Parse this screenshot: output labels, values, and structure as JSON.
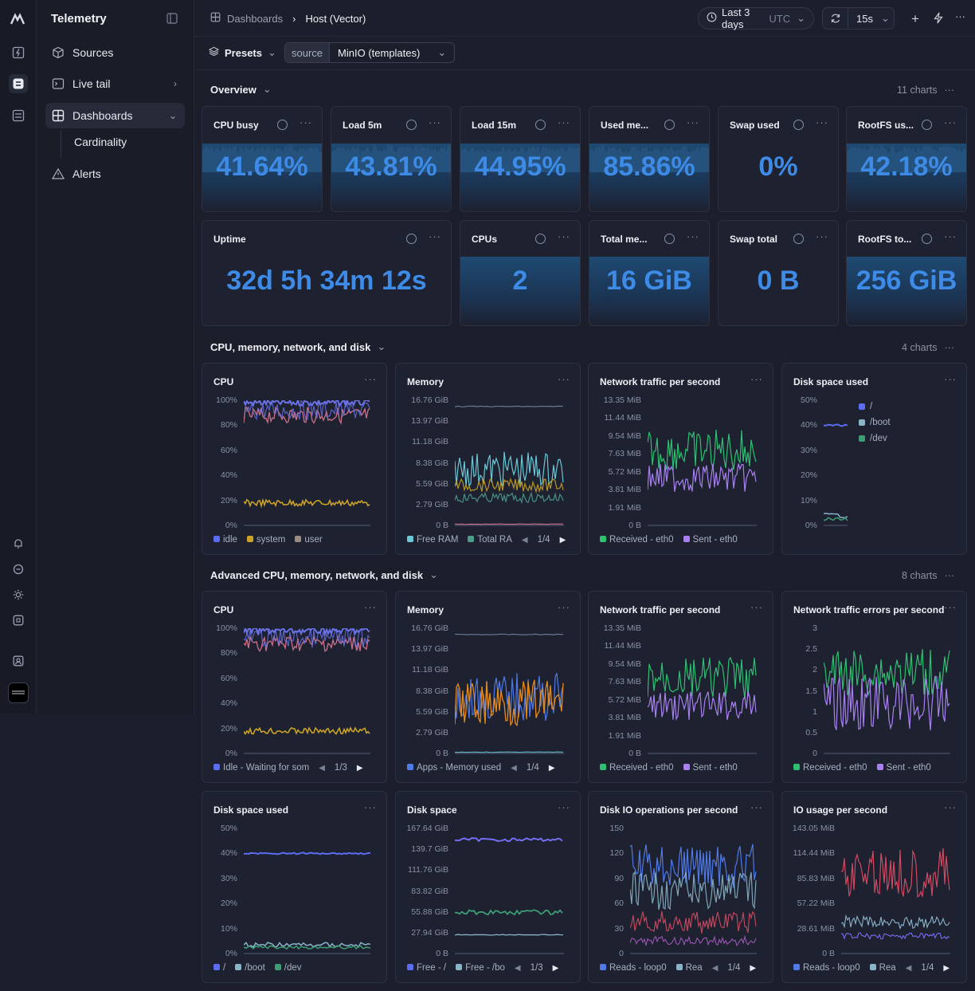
{
  "app": {
    "title": "Telemetry"
  },
  "nav": {
    "sources": "Sources",
    "live_tail": "Live tail",
    "dashboards": "Dashboards",
    "cardinality": "Cardinality",
    "alerts": "Alerts"
  },
  "breadcrumb": {
    "root": "Dashboards",
    "current": "Host (Vector)"
  },
  "toolbar": {
    "range": "Last 3 days",
    "tz": "UTC",
    "refresh": "15s"
  },
  "presets": {
    "label": "Presets",
    "source_key": "source",
    "source_value": "MinIO (templates)"
  },
  "sections": [
    {
      "title": "Overview",
      "count": "11 charts"
    },
    {
      "title": "CPU, memory, network, and disk",
      "count": "4 charts"
    },
    {
      "title": "Advanced CPU, memory, network, and disk",
      "count": "8 charts"
    }
  ],
  "overview": [
    {
      "title": "CPU busy",
      "value": "41.64%",
      "fill": 0.42
    },
    {
      "title": "Load 5m",
      "value": "43.81%",
      "fill": 0.44
    },
    {
      "title": "Load 15m",
      "value": "44.95%",
      "fill": 0.45
    },
    {
      "title": "Used me...",
      "value": "85.86%",
      "fill": 0.86
    },
    {
      "title": "Swap used",
      "value": "0%",
      "fill": 0
    },
    {
      "title": "RootFS us...",
      "value": "42.18%",
      "fill": 0.42
    },
    {
      "title": "Uptime",
      "value": "32d 5h 34m 12s",
      "fill": 0
    },
    {
      "title": "CPUs",
      "value": "2",
      "fill": 1
    },
    {
      "title": "Total me...",
      "value": "16 GiB",
      "fill": 1
    },
    {
      "title": "Swap total",
      "value": "0 B",
      "fill": 0
    },
    {
      "title": "RootFS to...",
      "value": "256 GiB",
      "fill": 1
    }
  ],
  "charts": [
    {
      "title": "CPU",
      "yticks": [
        "100%",
        "80%",
        "60%",
        "40%",
        "20%",
        "0%"
      ],
      "legend": [
        "idle",
        "system",
        "user"
      ],
      "colors": [
        "#5b6cf0",
        "#c9a227",
        "#9a8c86"
      ],
      "pager": ""
    },
    {
      "title": "Memory",
      "yticks": [
        "16.76 GiB",
        "13.97 GiB",
        "11.18 GiB",
        "8.38 GiB",
        "5.59 GiB",
        "2.79 GiB",
        "0 B"
      ],
      "legend": [
        "Free RAM",
        "Total RA"
      ],
      "colors": [
        "#6cc7d6",
        "#4e9c8a"
      ],
      "pager": "1/4"
    },
    {
      "title": "Network traffic per second",
      "yticks": [
        "13.35 MiB",
        "11.44 MiB",
        "9.54 MiB",
        "7.63 MiB",
        "5.72 MiB",
        "3.81 MiB",
        "1.91 MiB",
        "0 B"
      ],
      "legend": [
        "Received - eth0",
        "Sent - eth0"
      ],
      "colors": [
        "#2fbf71",
        "#a880f0"
      ],
      "pager": ""
    },
    {
      "title": "Disk space used",
      "yticks": [
        "50%",
        "40%",
        "30%",
        "20%",
        "10%",
        "0%"
      ],
      "legend": [
        "/",
        "/boot",
        "/dev"
      ],
      "colors": [
        "#5b6cf0",
        "#8ab4c8",
        "#3e9c74"
      ],
      "pager": ""
    },
    {
      "title": "CPU",
      "yticks": [
        "100%",
        "80%",
        "60%",
        "40%",
        "20%",
        "0%"
      ],
      "legend": [
        "Idle - Waiting for som"
      ],
      "colors": [
        "#5b6cf0"
      ],
      "pager": "1/3"
    },
    {
      "title": "Memory",
      "yticks": [
        "16.76 GiB",
        "13.97 GiB",
        "11.18 GiB",
        "8.38 GiB",
        "5.59 GiB",
        "2.79 GiB",
        "0 B"
      ],
      "legend": [
        "Apps - Memory used"
      ],
      "colors": [
        "#4f7ae8"
      ],
      "pager": "1/4"
    },
    {
      "title": "Network traffic per second",
      "yticks": [
        "13.35 MiB",
        "11.44 MiB",
        "9.54 MiB",
        "7.63 MiB",
        "5.72 MiB",
        "3.81 MiB",
        "1.91 MiB",
        "0 B"
      ],
      "legend": [
        "Received - eth0",
        "Sent - eth0"
      ],
      "colors": [
        "#2fbf71",
        "#a880f0"
      ],
      "pager": ""
    },
    {
      "title": "Network traffic errors per second",
      "yticks": [
        "3",
        "2.5",
        "2",
        "1.5",
        "1",
        "0.5",
        "0"
      ],
      "legend": [
        "Received - eth0",
        "Sent - eth0"
      ],
      "colors": [
        "#2fbf71",
        "#a880f0"
      ],
      "pager": ""
    },
    {
      "title": "Disk space used",
      "yticks": [
        "50%",
        "40%",
        "30%",
        "20%",
        "10%",
        "0%"
      ],
      "legend": [
        "/",
        "/boot",
        "/dev"
      ],
      "colors": [
        "#5b6cf0",
        "#8ab4c8",
        "#3e9c74"
      ],
      "pager": ""
    },
    {
      "title": "Disk space",
      "yticks": [
        "167.64 GiB",
        "139.7 GiB",
        "111.76 GiB",
        "83.82 GiB",
        "55.88 GiB",
        "27.94 GiB",
        "0 B"
      ],
      "legend": [
        "Free - /",
        "Free - /bo"
      ],
      "colors": [
        "#5b6cf0",
        "#8ab4c8"
      ],
      "pager": "1/3"
    },
    {
      "title": "Disk IO operations per second",
      "yticks": [
        "150",
        "120",
        "90",
        "60",
        "30",
        "0"
      ],
      "legend": [
        "Reads - loop0",
        "Rea"
      ],
      "colors": [
        "#4f7ae8",
        "#8ab4c8"
      ],
      "pager": "1/4"
    },
    {
      "title": "IO usage per second",
      "yticks": [
        "143.05 MiB",
        "114.44 MiB",
        "85.83 MiB",
        "57.22 MiB",
        "28.61 MiB",
        "0 B"
      ],
      "legend": [
        "Reads - loop0",
        "Rea"
      ],
      "colors": [
        "#4f7ae8",
        "#8ab4c8"
      ],
      "pager": "1/4"
    }
  ]
}
